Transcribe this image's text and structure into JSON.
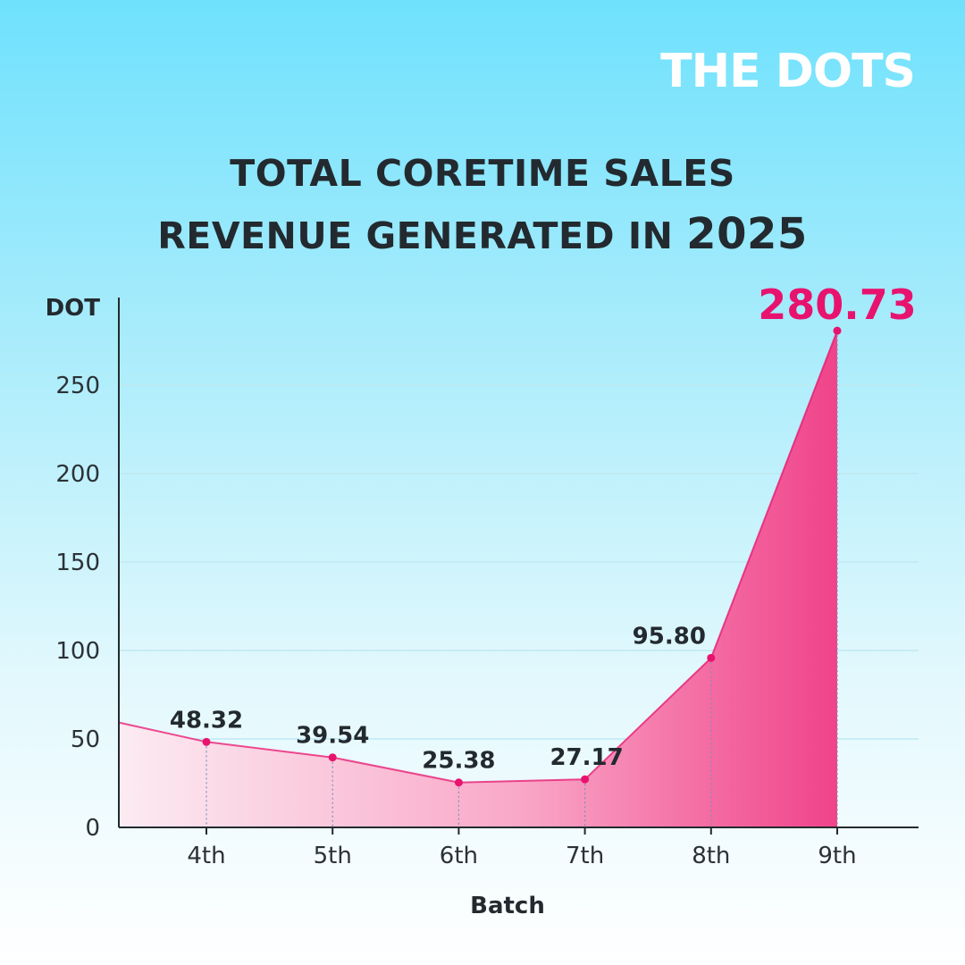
{
  "brand": {
    "name": "THE DOTS"
  },
  "chart_data": {
    "type": "area",
    "title_line1": "TOTAL CORETIME SALES",
    "title_line2": "REVENUE GENERATED IN",
    "title_year": "2025",
    "ylabel": "DOT",
    "xlabel": "Batch",
    "ylim": [
      0,
      300
    ],
    "yticks": [
      0,
      50,
      100,
      150,
      200,
      250
    ],
    "categories": [
      "4th",
      "5th",
      "6th",
      "7th",
      "8th",
      "9th"
    ],
    "values": [
      48.32,
      39.54,
      25.38,
      27.17,
      95.8,
      280.73
    ],
    "value_labels": [
      "48.32",
      "39.54",
      "25.38",
      "27.17",
      "95.80",
      "280.73"
    ],
    "grid": true,
    "colors": {
      "line": "#e8136e",
      "highlight": "#e8136e",
      "fill_light": "#fbe3ee",
      "fill_dark": "#f0438a"
    }
  }
}
